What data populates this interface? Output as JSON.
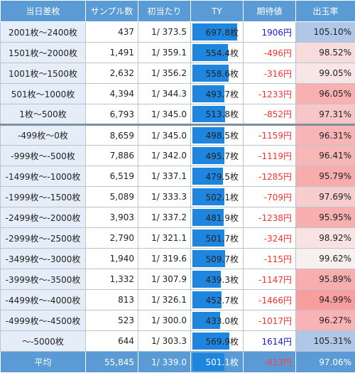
{
  "header": {
    "col_label": "当日差枚",
    "col_samples": "サンプル数",
    "col_first_hit": "初当たり",
    "col_ty": "TY",
    "col_ev": "期待値",
    "col_rate": "出玉率"
  },
  "colors": {
    "header_bg": "#5b9bd5",
    "label_bg": "#e5eef8",
    "bar": "#1f86e0",
    "positive_ev": "#1a1adf",
    "negative_ev": "#ff3030",
    "rate_high": "#b0c7e8",
    "rate_low": "#f2a9a9"
  },
  "groups": [
    {
      "rows": [
        {
          "label": "2001枚〜2400枚",
          "samples": "437",
          "first_hit": "1/ 373.5",
          "ty": "697.8枚",
          "ty_value": 697.8,
          "ev": "1906円",
          "ev_value": 1906,
          "rate": "105.10%",
          "rate_value": 105.1
        },
        {
          "label": "1501枚〜2000枚",
          "samples": "1,491",
          "first_hit": "1/ 359.1",
          "ty": "554.4枚",
          "ty_value": 554.4,
          "ev": "-496円",
          "ev_value": -496,
          "rate": "98.52%",
          "rate_value": 98.52
        },
        {
          "label": "1001枚〜1500枚",
          "samples": "2,632",
          "first_hit": "1/ 356.2",
          "ty": "558.6枚",
          "ty_value": 558.6,
          "ev": "-316円",
          "ev_value": -316,
          "rate": "99.05%",
          "rate_value": 99.05
        },
        {
          "label": "501枚〜1000枚",
          "samples": "4,394",
          "first_hit": "1/ 344.3",
          "ty": "493.7枚",
          "ty_value": 493.7,
          "ev": "-1233円",
          "ev_value": -1233,
          "rate": "96.05%",
          "rate_value": 96.05
        },
        {
          "label": "1枚〜500枚",
          "samples": "6,793",
          "first_hit": "1/ 345.0",
          "ty": "513.8枚",
          "ty_value": 513.8,
          "ev": "-852円",
          "ev_value": -852,
          "rate": "97.31%",
          "rate_value": 97.31
        }
      ]
    },
    {
      "rows": [
        {
          "label": "-499枚〜0枚",
          "samples": "8,659",
          "first_hit": "1/ 345.0",
          "ty": "498.5枚",
          "ty_value": 498.5,
          "ev": "-1159円",
          "ev_value": -1159,
          "rate": "96.31%",
          "rate_value": 96.31
        },
        {
          "label": "-999枚〜-500枚",
          "samples": "7,886",
          "first_hit": "1/ 342.0",
          "ty": "495.7枚",
          "ty_value": 495.7,
          "ev": "-1119円",
          "ev_value": -1119,
          "rate": "96.41%",
          "rate_value": 96.41
        },
        {
          "label": "-1499枚〜-1000枚",
          "samples": "6,519",
          "first_hit": "1/ 337.1",
          "ty": "479.5枚",
          "ty_value": 479.5,
          "ev": "-1285円",
          "ev_value": -1285,
          "rate": "95.79%",
          "rate_value": 95.79
        },
        {
          "label": "-1999枚〜-1500枚",
          "samples": "5,089",
          "first_hit": "1/ 333.3",
          "ty": "502.1枚",
          "ty_value": 502.1,
          "ev": "-709円",
          "ev_value": -709,
          "rate": "97.69%",
          "rate_value": 97.69
        },
        {
          "label": "-2499枚〜-2000枚",
          "samples": "3,903",
          "first_hit": "1/ 337.2",
          "ty": "481.9枚",
          "ty_value": 481.9,
          "ev": "-1238円",
          "ev_value": -1238,
          "rate": "95.95%",
          "rate_value": 95.95
        },
        {
          "label": "-2999枚〜-2500枚",
          "samples": "2,790",
          "first_hit": "1/ 321.1",
          "ty": "501.7枚",
          "ty_value": 501.7,
          "ev": "-324円",
          "ev_value": -324,
          "rate": "98.92%",
          "rate_value": 98.92
        },
        {
          "label": "-3499枚〜-3000枚",
          "samples": "1,940",
          "first_hit": "1/ 319.6",
          "ty": "509.7枚",
          "ty_value": 509.7,
          "ev": "-115円",
          "ev_value": -115,
          "rate": "99.62%",
          "rate_value": 99.62
        },
        {
          "label": "-3999枚〜-3500枚",
          "samples": "1,332",
          "first_hit": "1/ 307.9",
          "ty": "439.3枚",
          "ty_value": 439.3,
          "ev": "-1147円",
          "ev_value": -1147,
          "rate": "95.89%",
          "rate_value": 95.89
        },
        {
          "label": "-4499枚〜-4000枚",
          "samples": "813",
          "first_hit": "1/ 326.1",
          "ty": "452.7枚",
          "ty_value": 452.7,
          "ev": "-1466円",
          "ev_value": -1466,
          "rate": "94.99%",
          "rate_value": 94.99
        },
        {
          "label": "-4999枚〜-4500枚",
          "samples": "523",
          "first_hit": "1/ 300.0",
          "ty": "433.0枚",
          "ty_value": 433.0,
          "ev": "-1017円",
          "ev_value": -1017,
          "rate": "96.27%",
          "rate_value": 96.27
        },
        {
          "label": "〜-5000枚",
          "samples": "644",
          "first_hit": "1/ 303.3",
          "ty": "569.9枚",
          "ty_value": 569.9,
          "ev": "1614円",
          "ev_value": 1614,
          "rate": "105.31%",
          "rate_value": 105.31
        }
      ]
    }
  ],
  "average": {
    "label": "平均",
    "samples": "55,845",
    "first_hit": "1/ 339.0",
    "ty": "501.1枚",
    "ty_value": 501.1,
    "ev": "-913円",
    "ev_value": -913,
    "rate": "97.06%",
    "rate_value": 97.06
  },
  "ty_scale_max": 730
}
